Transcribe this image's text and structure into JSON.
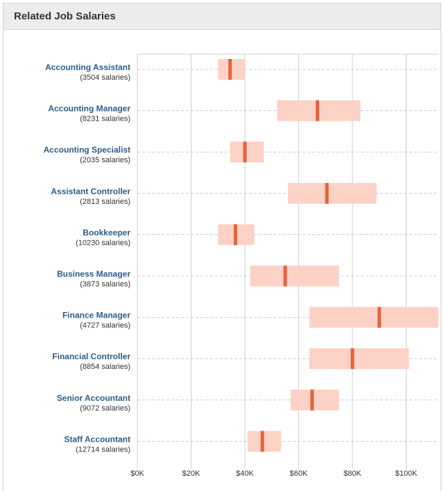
{
  "header": {
    "title": "Related Job Salaries"
  },
  "colors": {
    "range_fill": "#fcd2c6",
    "median_mark": "#e8623a",
    "grid": "#cfcfd6",
    "row_guide": "#c8c8d8",
    "title_link": "#2a5d8c"
  },
  "chart_data": {
    "type": "bar",
    "title": "",
    "xlabel": "",
    "ylabel": "",
    "xlim": [
      0,
      112000
    ],
    "x_ticks": [
      0,
      20000,
      40000,
      60000,
      80000,
      100000
    ],
    "x_tick_labels": [
      "$0K",
      "$20K",
      "$40K",
      "$60K",
      "$80K",
      "$100K"
    ],
    "grid": true,
    "rows": [
      {
        "title": "Accounting Assistant",
        "count": "(3504 salaries)",
        "low": 30000,
        "median": 34500,
        "high": 40000
      },
      {
        "title": "Accounting Manager",
        "count": "(8231 salaries)",
        "low": 52000,
        "median": 67000,
        "high": 83000
      },
      {
        "title": "Accounting Specialist",
        "count": "(2035 salaries)",
        "low": 34500,
        "median": 40000,
        "high": 47000
      },
      {
        "title": "Assistant Controller",
        "count": "(2813 salaries)",
        "low": 56000,
        "median": 70500,
        "high": 89000
      },
      {
        "title": "Bookkeeper",
        "count": "(10230 salaries)",
        "low": 30000,
        "median": 36500,
        "high": 43500
      },
      {
        "title": "Business Manager",
        "count": "(3873 salaries)",
        "low": 42000,
        "median": 55000,
        "high": 75000
      },
      {
        "title": "Finance Manager",
        "count": "(4727 salaries)",
        "low": 64000,
        "median": 90000,
        "high": 112000
      },
      {
        "title": "Financial Controller",
        "count": "(8854 salaries)",
        "low": 64000,
        "median": 80000,
        "high": 101000
      },
      {
        "title": "Senior Accountant",
        "count": "(9072 salaries)",
        "low": 57000,
        "median": 65000,
        "high": 75000
      },
      {
        "title": "Staff Accountant",
        "count": "(12714 salaries)",
        "low": 41000,
        "median": 46500,
        "high": 53500
      }
    ]
  }
}
